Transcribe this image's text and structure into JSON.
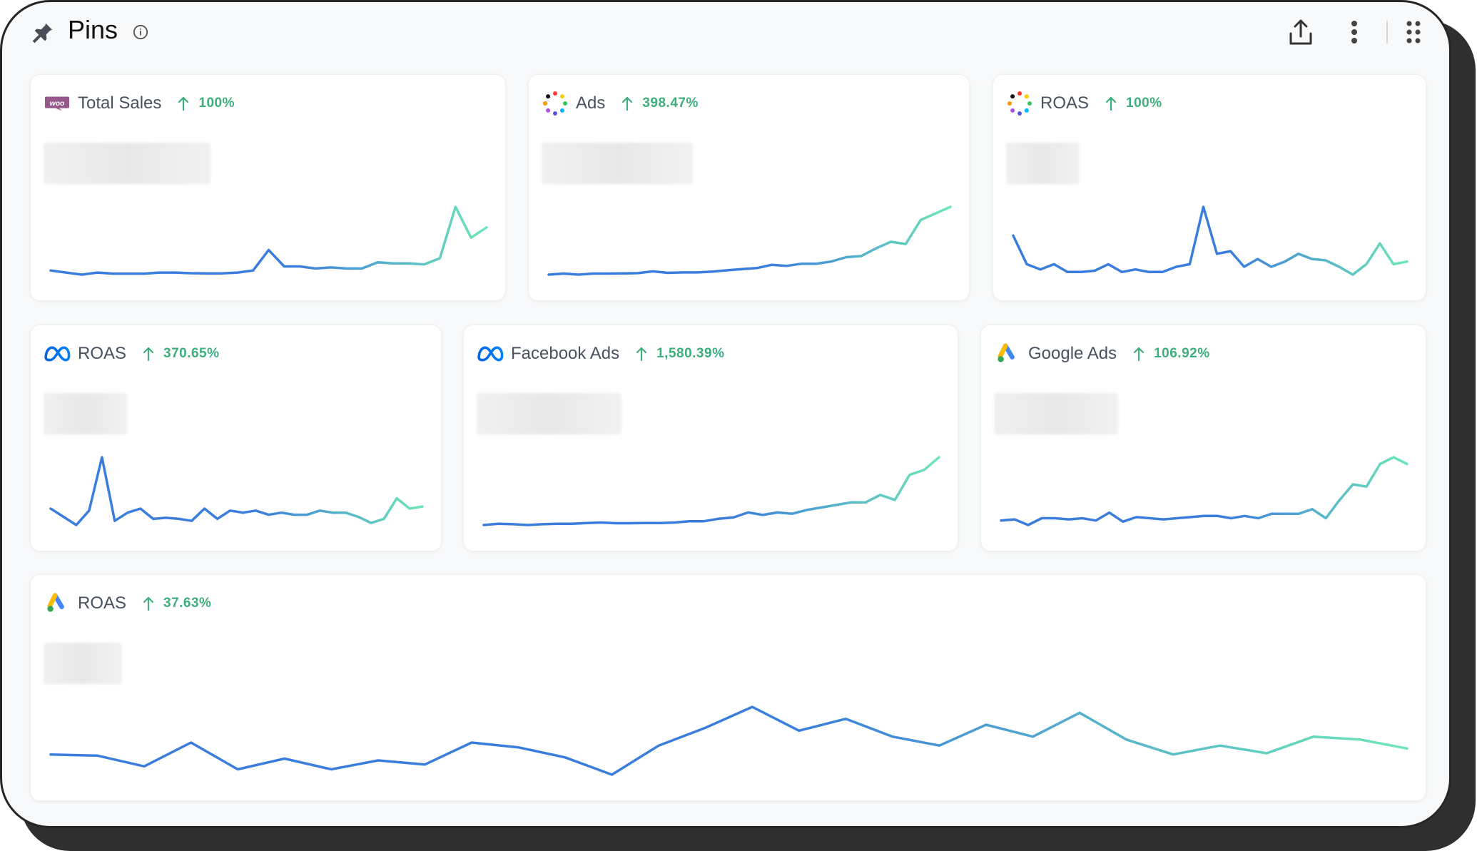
{
  "header": {
    "title": "Pins",
    "icons": [
      "pin-icon",
      "info-icon",
      "share-icon",
      "more-vertical-icon",
      "grid-icon"
    ]
  },
  "colors": {
    "line_start": "#3b7ddd",
    "line_end": "#6ee7b7",
    "positive": "#3fae7e",
    "frame_border": "#262626"
  },
  "cards": [
    {
      "source": "woocommerce-icon",
      "title": "Total Sales",
      "change": "100%",
      "trend": [
        4,
        3,
        2,
        3,
        2.5,
        2.5,
        2.5,
        3,
        3,
        2.7,
        2.6,
        2.6,
        3,
        4,
        14,
        6,
        6,
        5,
        5.5,
        5,
        5,
        8,
        7.5,
        7.5,
        7,
        10,
        35,
        20,
        25
      ]
    },
    {
      "source": "multi-channel-icon",
      "title": "Ads",
      "change": "398.47%",
      "trend": [
        2,
        2.5,
        2,
        2.5,
        2.5,
        2.6,
        2.7,
        3.5,
        2.8,
        3,
        3,
        3.4,
        4,
        4.5,
        5,
        6.5,
        6,
        7,
        7,
        8,
        10,
        10.5,
        14,
        17,
        16,
        27,
        30,
        33
      ]
    },
    {
      "source": "multi-channel-icon",
      "title": "ROAS",
      "change": "100%",
      "trend": [
        19,
        8,
        6,
        8,
        5,
        5,
        5.5,
        8,
        5,
        6,
        5,
        5,
        7,
        8,
        30,
        12,
        13,
        7,
        10,
        7,
        9,
        12,
        10,
        9.5,
        7,
        4,
        8,
        16,
        8,
        9
      ]
    },
    {
      "source": "meta-icon",
      "title": "ROAS",
      "change": "370.65%",
      "trend": [
        9,
        5,
        1,
        8,
        34,
        3,
        7,
        9,
        4,
        4.5,
        4,
        3,
        9,
        4,
        8,
        7,
        8,
        6,
        7,
        6,
        6,
        8,
        7,
        7,
        5,
        2,
        4,
        14,
        9,
        10
      ]
    },
    {
      "source": "meta-icon",
      "title": "Facebook Ads",
      "change": "1,580.39%",
      "trend": [
        2,
        2.5,
        2.3,
        2,
        2.3,
        2.5,
        2.5,
        2.8,
        3,
        2.7,
        2.7,
        2.8,
        2.8,
        3,
        3.5,
        3.5,
        4.5,
        5,
        7,
        6,
        7,
        6.5,
        8,
        9,
        10,
        11,
        11,
        14,
        12,
        22,
        24,
        29
      ]
    },
    {
      "source": "google-ads-icon",
      "title": "Google Ads",
      "change": "106.92%",
      "trend": [
        5,
        5.5,
        3,
        6,
        6,
        5.5,
        6,
        5,
        8.5,
        4.5,
        6.5,
        6,
        5.5,
        6,
        6.5,
        7,
        7,
        6,
        7,
        6,
        8,
        8,
        8,
        10,
        6,
        14,
        21,
        20,
        30,
        33,
        30
      ]
    },
    {
      "source": "google-ads-icon",
      "title": "ROAS",
      "change": "37.63%",
      "trend": [
        10,
        9.8,
        8,
        12,
        7.5,
        9.3,
        7.5,
        9,
        8.3,
        12,
        11.2,
        9.5,
        6.6,
        11.5,
        14.5,
        18,
        14,
        16,
        13,
        11.5,
        15,
        13,
        17,
        12.5,
        10,
        11.5,
        10.2,
        13,
        12.5,
        11
      ]
    }
  ]
}
